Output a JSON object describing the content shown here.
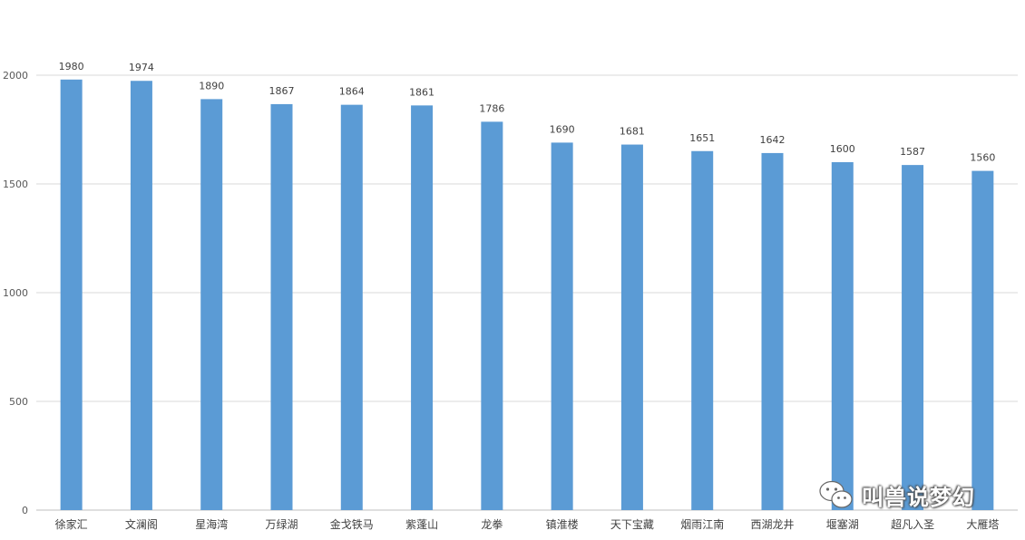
{
  "chart_data": {
    "type": "bar",
    "categories": [
      "徐家汇",
      "文澜阁",
      "星海湾",
      "万绿湖",
      "金戈铁马",
      "紫蓬山",
      "龙拳",
      "镇淮楼",
      "天下宝藏",
      "烟雨江南",
      "西湖龙井",
      "堰塞湖",
      "超凡入圣",
      "大雁塔"
    ],
    "values": [
      1980,
      1974,
      1890,
      1867,
      1864,
      1861,
      1786,
      1690,
      1681,
      1651,
      1642,
      1600,
      1587,
      1560
    ],
    "title": "",
    "xlabel": "",
    "ylabel": "",
    "ylim": [
      0,
      2000
    ],
    "yticks": [
      0,
      500,
      1000,
      1500,
      2000
    ],
    "grid": true,
    "bar_color": "#5B9BD5",
    "grid_color": "#D9D9D9"
  },
  "watermark": {
    "text": "叫兽说梦幻",
    "icon": "wechat-icon"
  }
}
